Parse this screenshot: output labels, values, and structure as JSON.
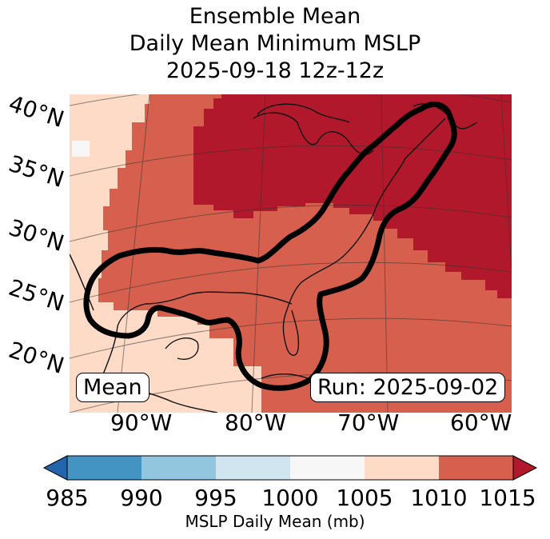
{
  "title": {
    "line1": "Ensemble Mean",
    "line2": "Daily Mean Minimum MSLP",
    "line3": "2025-09-18 12z-12z"
  },
  "map": {
    "lat_labels": [
      "40°N",
      "35°N",
      "30°N",
      "25°N",
      "20°N"
    ],
    "lon_labels": [
      "90°W",
      "80°W",
      "70°W",
      "60°W"
    ],
    "left_box": "Mean",
    "right_box": "Run: 2025-09-02",
    "fill_colors": {
      "lt_1000_1005_band": "#f7f7f7",
      "band_1005_1010": "#fddbc7",
      "band_1010_1015": "#d6604d",
      "band_gt_1015": "#b2182b"
    }
  },
  "colorbar": {
    "ticks": [
      "985",
      "990",
      "995",
      "1000",
      "1005",
      "1010",
      "1015"
    ],
    "colors": [
      "#2166ac",
      "#4393c3",
      "#92c5de",
      "#d1e5f0",
      "#f7f7f7",
      "#fddbc7",
      "#d6604d",
      "#b2182b"
    ],
    "label": "MSLP Daily Mean (mb)"
  }
}
